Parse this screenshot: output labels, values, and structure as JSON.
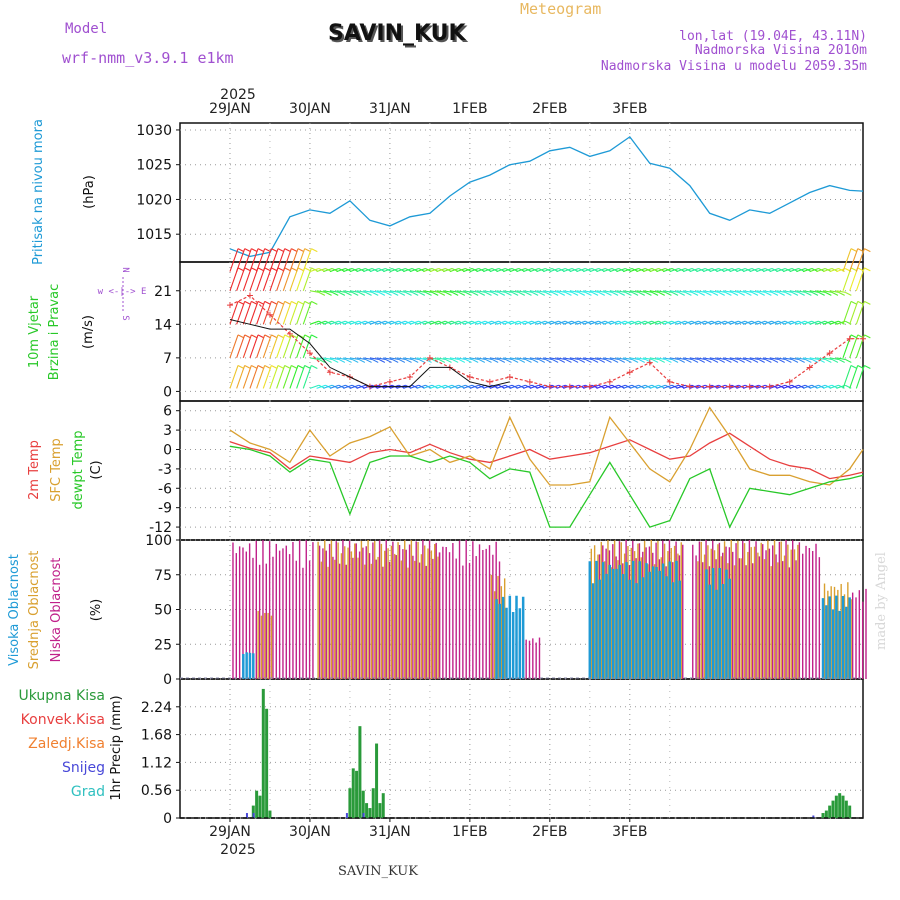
{
  "header": {
    "model_label": "Model",
    "model_name": "wrf-nmm_v3.9.1 e1km",
    "station": "SAVIN_KUK",
    "product": "Meteogram",
    "lonlat": "lon,lat (19.04E, 43.11N)",
    "elevation": "Nadmorska Visina 2010m",
    "model_elevation": "Nadmorska Visina u modelu 2059.35m",
    "year_top": "2025",
    "year_bottom": "2025",
    "footer": "SAVIN_KUK",
    "credit": "made by Angel"
  },
  "colors": {
    "pressure": "#1e9ad6",
    "temp2m": "#e84040",
    "sfc": "#d9a030",
    "dew": "#28c828",
    "high": "#1e9ad6",
    "mid": "#d9a030",
    "low": "#c0208a",
    "total": "#2a9a3a",
    "convective": "#e84040",
    "frozen": "#f08030",
    "snow": "#4848d8",
    "graupel": "#30c0c0",
    "model_text": "#a050d0",
    "product_text": "#e8b860"
  },
  "days": [
    "29JAN",
    "30JAN",
    "31JAN",
    "1FEB",
    "2FEB",
    "3FEB"
  ],
  "panels": {
    "pressure": {
      "ylabel": "Pritisak na nivou mora",
      "unit": "(hPa)",
      "ticks": [
        "1015",
        "1020",
        "1025",
        "1030"
      ]
    },
    "wind": {
      "ylabel1": "10m Vjetar",
      "ylabel2": "Brzina i Pravac",
      "unit": "(m/s)",
      "ticks": [
        "0",
        "7",
        "14",
        "21"
      ],
      "compass": "w <-|-> E",
      "compass_n": "N",
      "compass_s": "S"
    },
    "temp": {
      "label1": "2m Temp",
      "label2": "SFC Temp",
      "label3": "dewpt Temp",
      "unit": "(C)",
      "ticks": [
        "-12",
        "-9",
        "-6",
        "-3",
        "0",
        "3",
        "6"
      ]
    },
    "cloud": {
      "label1": "Visoka Oblacnost",
      "label2": "Srednja Oblacnost",
      "label3": "Niska Oblacnost",
      "unit": "(%)",
      "ticks": [
        "0",
        "25",
        "50",
        "75",
        "100"
      ]
    },
    "precip": {
      "legend": [
        "Ukupna Kisa",
        "Konvek.Kisa",
        "Zaledj.Kisa",
        "Snijeg",
        "Grad"
      ],
      "ylabel": "1hr Precip (mm)",
      "ticks": [
        "0",
        "0.56",
        "1.12",
        "1.68",
        "2.24"
      ]
    }
  },
  "chart_data": [
    {
      "type": "line",
      "title": "Pritisak na nivou mora",
      "ylabel": "(hPa)",
      "x_hours": [
        0,
        6,
        12,
        18,
        24,
        30,
        36,
        42,
        48,
        54,
        60,
        66,
        72,
        78,
        84,
        90,
        96,
        102,
        108,
        114,
        120,
        126,
        132,
        138,
        144,
        150,
        156,
        162,
        168,
        174,
        180,
        186,
        190
      ],
      "series": [
        {
          "values": [
            1012.9,
            1011.8,
            1012.4,
            1017.5,
            1018.5,
            1018.0,
            1019.8,
            1017.0,
            1016.2,
            1017.5,
            1018.0,
            1020.5,
            1022.5,
            1023.5,
            1025.0,
            1025.5,
            1027.0,
            1027.5,
            1026.2,
            1027.0,
            1029.0,
            1025.2,
            1024.5,
            1022.0,
            1018.0,
            1017.0,
            1018.5,
            1018.0,
            1019.5,
            1021.0,
            1022.0,
            1021.3,
            1021.2
          ]
        }
      ],
      "ylim": [
        1011,
        1031
      ]
    },
    {
      "type": "line",
      "title": "10m Vjetar",
      "ylabel": "(m/s)",
      "x_hours": [
        0,
        6,
        12,
        18,
        24,
        30,
        36,
        42,
        48,
        54,
        60,
        66,
        72,
        78,
        84,
        90,
        96,
        102,
        108,
        114,
        120,
        126,
        132,
        138,
        144,
        150,
        156,
        162,
        168,
        174,
        180,
        186,
        190
      ],
      "series": [
        {
          "name": "Brzina i Pravac",
          "values": [
            18,
            20,
            16,
            12,
            8,
            4,
            3,
            1,
            2,
            3,
            7,
            5,
            3,
            2,
            3,
            2,
            1,
            1,
            1,
            2,
            4,
            6,
            2,
            1,
            1,
            1,
            1,
            1,
            2,
            5,
            8,
            11,
            11
          ]
        },
        {
          "values": [
            15,
            14,
            13,
            13,
            10,
            5,
            3,
            1,
            1,
            1,
            5,
            5,
            2,
            1,
            2,
            1,
            1,
            1,
            1,
            1,
            3,
            4,
            1,
            1,
            1,
            1,
            1,
            1,
            2,
            4,
            7,
            10,
            10
          ]
        }
      ],
      "ylim": [
        -2,
        27
      ]
    },
    {
      "type": "line",
      "title": "Temp",
      "ylabel": "(C)",
      "x_hours": [
        0,
        6,
        12,
        18,
        24,
        30,
        36,
        42,
        48,
        54,
        60,
        66,
        72,
        78,
        84,
        90,
        96,
        102,
        108,
        114,
        120,
        126,
        132,
        138,
        144,
        150,
        156,
        162,
        168,
        174,
        180,
        186,
        190
      ],
      "series": [
        {
          "name": "2m Temp",
          "values": [
            1.2,
            0.2,
            -0.5,
            -3.0,
            -1.0,
            -1.5,
            -2.0,
            -0.5,
            0.0,
            -0.5,
            0.8,
            -0.5,
            -1.5,
            -2.0,
            -1.0,
            0.0,
            -1.5,
            -1.0,
            -0.5,
            0.5,
            1.5,
            0.0,
            -1.5,
            -1.0,
            1.0,
            2.5,
            0.5,
            -1.5,
            -2.5,
            -3.0,
            -4.5,
            -4.0,
            -3.5
          ]
        },
        {
          "name": "SFC Temp",
          "values": [
            3.0,
            1.0,
            0.0,
            -2.0,
            3.0,
            -1.0,
            1.0,
            2.0,
            3.5,
            -1.0,
            0.0,
            -2.0,
            -1.0,
            -3.0,
            5.0,
            -1.5,
            -5.5,
            -5.5,
            -5.0,
            5.0,
            1.0,
            -3.0,
            -5.0,
            0.0,
            6.5,
            2.0,
            -3.0,
            -4.0,
            -4.0,
            -5.0,
            -5.5,
            -3.0,
            0.0
          ]
        },
        {
          "name": "dewpt Temp",
          "values": [
            0.5,
            0.0,
            -1.0,
            -3.5,
            -1.5,
            -2.0,
            -10.0,
            -2.0,
            -1.0,
            -1.0,
            -2.0,
            -1.0,
            -2.0,
            -4.5,
            -3.0,
            -3.5,
            -12.0,
            -12.0,
            -7.0,
            -2.0,
            -7.0,
            -12.0,
            -11.0,
            -4.5,
            -3.0,
            -12.0,
            -6.0,
            -6.5,
            -7.0,
            -6.0,
            -5.0,
            -4.5,
            -4.0
          ]
        }
      ],
      "ylim": [
        -14,
        7.5
      ]
    },
    {
      "type": "bar",
      "title": "Oblacnost",
      "ylabel": "(%)",
      "ylim": [
        0,
        100
      ],
      "series": [
        {
          "name": "Visoka Oblacnost",
          "segments": [
            [
              4,
              7,
              20
            ],
            [
              80,
              88,
              60
            ],
            [
              108,
              135,
              85
            ],
            [
              143,
              150,
              80
            ],
            [
              178,
              186,
              60
            ]
          ]
        },
        {
          "name": "Srednja Oblacnost",
          "segments": [
            [
              8,
              12,
              50
            ],
            [
              26,
              62,
              100
            ],
            [
              78,
              82,
              75
            ],
            [
              108,
              135,
              100
            ],
            [
              140,
              170,
              100
            ],
            [
              178,
              186,
              70
            ]
          ]
        },
        {
          "name": "Niska Oblacnost",
          "segments": [
            [
              0,
              24,
              100
            ],
            [
              26,
              62,
              100
            ],
            [
              62,
              80,
              100
            ],
            [
              82,
              92,
              30
            ],
            [
              110,
              135,
              100
            ],
            [
              138,
              176,
              100
            ],
            [
              186,
              190,
              65
            ]
          ]
        }
      ]
    },
    {
      "type": "bar",
      "title": "1hr Precip",
      "ylabel": "1hr Precip (mm)",
      "ylim": [
        0,
        2.8
      ],
      "series": [
        {
          "name": "Ukupna Kisa",
          "points": [
            [
              7,
              0.25
            ],
            [
              8,
              0.55
            ],
            [
              9,
              0.45
            ],
            [
              10,
              2.6
            ],
            [
              11,
              2.2
            ],
            [
              12,
              0.15
            ],
            [
              36,
              0.6
            ],
            [
              37,
              1.0
            ],
            [
              38,
              0.95
            ],
            [
              39,
              1.85
            ],
            [
              40,
              0.55
            ],
            [
              41,
              0.3
            ],
            [
              42,
              0.2
            ],
            [
              43,
              0.6
            ],
            [
              44,
              1.5
            ],
            [
              45,
              0.3
            ],
            [
              46,
              0.5
            ],
            [
              178,
              0.1
            ],
            [
              179,
              0.15
            ],
            [
              180,
              0.25
            ],
            [
              181,
              0.35
            ],
            [
              182,
              0.45
            ],
            [
              183,
              0.5
            ],
            [
              184,
              0.45
            ],
            [
              185,
              0.35
            ],
            [
              186,
              0.25
            ]
          ]
        },
        {
          "name": "Snijeg",
          "points": [
            [
              6,
              0.1
            ],
            [
              8,
              0.1
            ],
            [
              36,
              0.1
            ],
            [
              41,
              0.1
            ],
            [
              176,
              0.05
            ]
          ]
        }
      ]
    }
  ]
}
